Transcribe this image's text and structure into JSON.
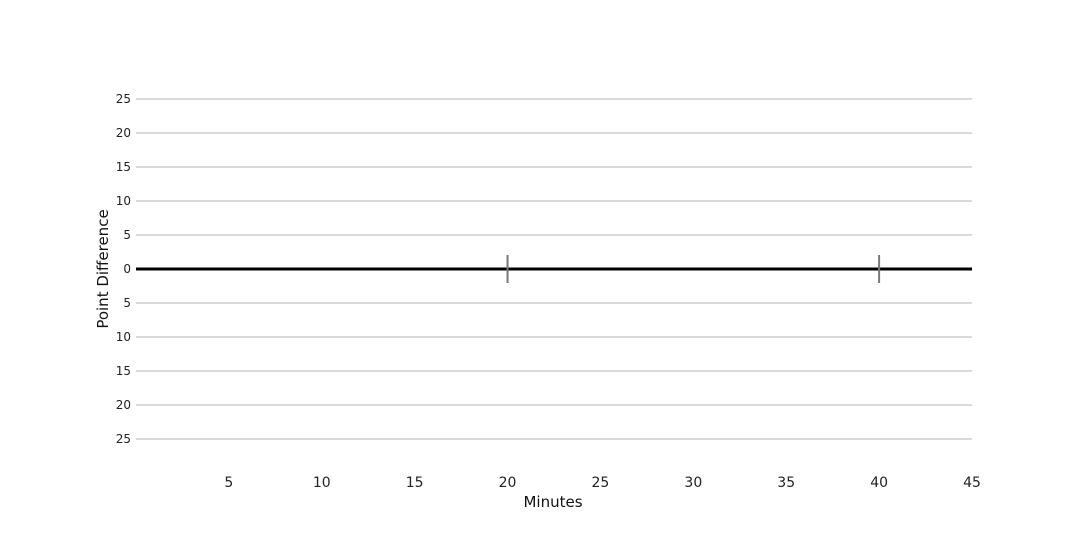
{
  "chart_data": {
    "type": "line",
    "title": "",
    "xlabel": "Minutes",
    "ylabel": "Point Difference",
    "xlim": [
      0,
      45
    ],
    "ylim": [
      -28,
      28
    ],
    "x_ticks": [
      5,
      10,
      15,
      20,
      25,
      30,
      35,
      40,
      45
    ],
    "y_ticks": [
      25,
      20,
      15,
      10,
      5,
      0,
      -5,
      -10,
      -15,
      -20,
      -25
    ],
    "y_tick_labels": [
      "25",
      "20",
      "15",
      "10",
      "5",
      "0",
      "5",
      "10",
      "15",
      "20",
      "25"
    ],
    "gridlines": "horizontal",
    "zero_line": true,
    "period_markers": [
      20,
      40
    ],
    "top_label": "",
    "bottom_label": "",
    "series_color": "#1e90ff",
    "series": []
  }
}
